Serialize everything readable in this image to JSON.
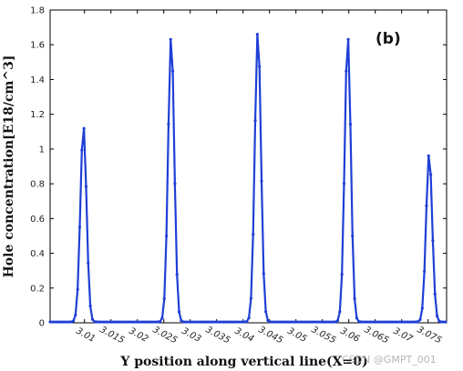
{
  "chart_data": {
    "type": "line",
    "panel_label": "(b)",
    "xlabel": "Y position along vertical line(X=0)",
    "ylabel": "Hole concentration[E18/cm^3]",
    "xlim": [
      3.0035,
      3.0785
    ],
    "ylim": [
      0,
      1.8
    ],
    "x_ticks": [
      "3.01",
      "3.015",
      "3.02",
      "3.025",
      "3.03",
      "3.035",
      "3.04",
      "3.045",
      "3.05",
      "3.055",
      "3.06",
      "3.065",
      "3.07",
      "3.075"
    ],
    "x_tick_values": [
      3.01,
      3.015,
      3.02,
      3.025,
      3.03,
      3.035,
      3.04,
      3.045,
      3.05,
      3.055,
      3.06,
      3.065,
      3.07,
      3.075
    ],
    "y_ticks": [
      "0",
      "0.2",
      "0.4",
      "0.6",
      "0.8",
      "1",
      "1.2",
      "1.4",
      "1.6",
      "1.8"
    ],
    "y_tick_values": [
      0,
      0.2,
      0.4,
      0.6,
      0.8,
      1.0,
      1.2,
      1.4,
      1.6,
      1.8
    ],
    "grid": false,
    "series": [
      {
        "color": "#1f3fd6",
        "peaks": [
          {
            "center": 3.0098,
            "amplitude": 1.13,
            "sigma": 0.00058
          },
          {
            "center": 3.0264,
            "amplitude": 1.65,
            "sigma": 0.00058
          },
          {
            "center": 3.0428,
            "amplitude": 1.68,
            "sigma": 0.00058
          },
          {
            "center": 3.0598,
            "amplitude": 1.65,
            "sigma": 0.00058
          },
          {
            "center": 3.0752,
            "amplitude": 0.97,
            "sigma": 0.00058
          }
        ],
        "baseline": 0.005,
        "x_start": 3.0035,
        "x_end": 3.0785,
        "sample_step": 0.0004
      }
    ]
  },
  "watermark": "CSDN @GMPT_001"
}
